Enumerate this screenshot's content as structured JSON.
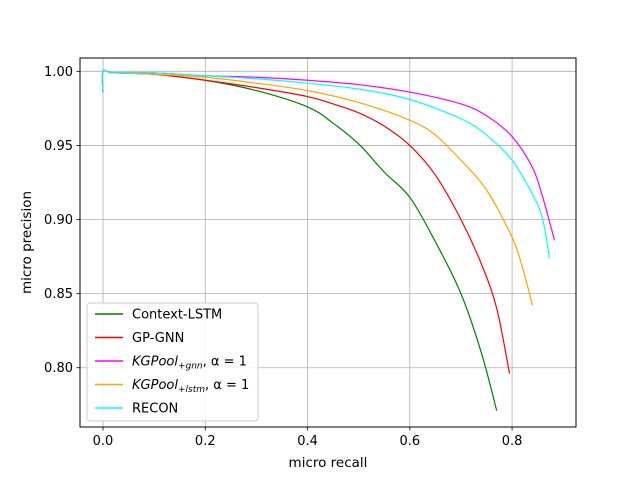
{
  "chart_data": {
    "type": "line",
    "title": "",
    "xlabel": "micro recall",
    "ylabel": "micro precision",
    "xlim": [
      -0.045,
      0.925
    ],
    "ylim": [
      0.76,
      1.009
    ],
    "xticks": [
      0.0,
      0.2,
      0.4,
      0.6,
      0.8
    ],
    "xtick_labels": [
      "0.0",
      "0.2",
      "0.4",
      "0.6",
      "0.8"
    ],
    "yticks": [
      0.8,
      0.85,
      0.9,
      0.95,
      1.0
    ],
    "ytick_labels": [
      "0.80",
      "0.85",
      "0.90",
      "0.95",
      "1.00"
    ],
    "grid": true,
    "legend_position": "lower-left",
    "series": [
      {
        "name": "Context-LSTM",
        "legend": {
          "main": "Context-LSTM",
          "sub": "",
          "tail": ""
        },
        "color": "#008000",
        "points": [
          [
            0.0,
            0.986
          ],
          [
            0.0,
            1.0
          ],
          [
            0.02,
            0.999
          ],
          [
            0.1,
            0.998
          ],
          [
            0.2,
            0.994
          ],
          [
            0.3,
            0.987
          ],
          [
            0.4,
            0.976
          ],
          [
            0.45,
            0.965
          ],
          [
            0.5,
            0.951
          ],
          [
            0.55,
            0.932
          ],
          [
            0.6,
            0.915
          ],
          [
            0.65,
            0.885
          ],
          [
            0.7,
            0.85
          ],
          [
            0.74,
            0.81
          ],
          [
            0.77,
            0.771
          ]
        ]
      },
      {
        "name": "GP-GNN",
        "legend": {
          "main": "GP-GNN",
          "sub": "",
          "tail": ""
        },
        "color": "#ff0000",
        "points": [
          [
            0.0,
            0.986
          ],
          [
            0.0,
            1.0
          ],
          [
            0.02,
            0.999
          ],
          [
            0.1,
            0.998
          ],
          [
            0.2,
            0.994
          ],
          [
            0.3,
            0.989
          ],
          [
            0.4,
            0.983
          ],
          [
            0.45,
            0.978
          ],
          [
            0.5,
            0.972
          ],
          [
            0.55,
            0.963
          ],
          [
            0.6,
            0.95
          ],
          [
            0.65,
            0.93
          ],
          [
            0.7,
            0.9
          ],
          [
            0.74,
            0.87
          ],
          [
            0.77,
            0.84
          ],
          [
            0.795,
            0.796
          ]
        ]
      },
      {
        "name": "KGPool+gnn, α = 1",
        "legend": {
          "main": "KGPool",
          "sub": "+gnn",
          "tail": ", α = 1"
        },
        "color": "#ff00ff",
        "points": [
          [
            0.0,
            0.986
          ],
          [
            0.0,
            1.0
          ],
          [
            0.02,
            0.999
          ],
          [
            0.1,
            0.999
          ],
          [
            0.2,
            0.997
          ],
          [
            0.3,
            0.996
          ],
          [
            0.4,
            0.994
          ],
          [
            0.5,
            0.991
          ],
          [
            0.6,
            0.986
          ],
          [
            0.7,
            0.978
          ],
          [
            0.75,
            0.97
          ],
          [
            0.8,
            0.956
          ],
          [
            0.84,
            0.935
          ],
          [
            0.86,
            0.915
          ],
          [
            0.883,
            0.886
          ]
        ]
      },
      {
        "name": "KGPool+lstm, α = 1",
        "legend": {
          "main": "KGPool",
          "sub": "+lstm",
          "tail": ", α = 1"
        },
        "color": "#ffa500",
        "points": [
          [
            0.0,
            0.986
          ],
          [
            0.0,
            1.0
          ],
          [
            0.02,
            0.999
          ],
          [
            0.1,
            0.998
          ],
          [
            0.2,
            0.996
          ],
          [
            0.3,
            0.992
          ],
          [
            0.4,
            0.987
          ],
          [
            0.5,
            0.979
          ],
          [
            0.6,
            0.967
          ],
          [
            0.65,
            0.957
          ],
          [
            0.7,
            0.94
          ],
          [
            0.75,
            0.92
          ],
          [
            0.8,
            0.888
          ],
          [
            0.82,
            0.868
          ],
          [
            0.84,
            0.842
          ]
        ]
      },
      {
        "name": "RECON",
        "legend": {
          "main": "RECON",
          "sub": "",
          "tail": ""
        },
        "color": "#00ffff",
        "points": [
          [
            0.0,
            0.986
          ],
          [
            0.0,
            1.0
          ],
          [
            0.02,
            0.999
          ],
          [
            0.1,
            0.999
          ],
          [
            0.2,
            0.997
          ],
          [
            0.3,
            0.995
          ],
          [
            0.4,
            0.992
          ],
          [
            0.5,
            0.988
          ],
          [
            0.6,
            0.981
          ],
          [
            0.7,
            0.968
          ],
          [
            0.75,
            0.957
          ],
          [
            0.8,
            0.94
          ],
          [
            0.84,
            0.917
          ],
          [
            0.86,
            0.9
          ],
          [
            0.873,
            0.874
          ]
        ]
      }
    ]
  }
}
